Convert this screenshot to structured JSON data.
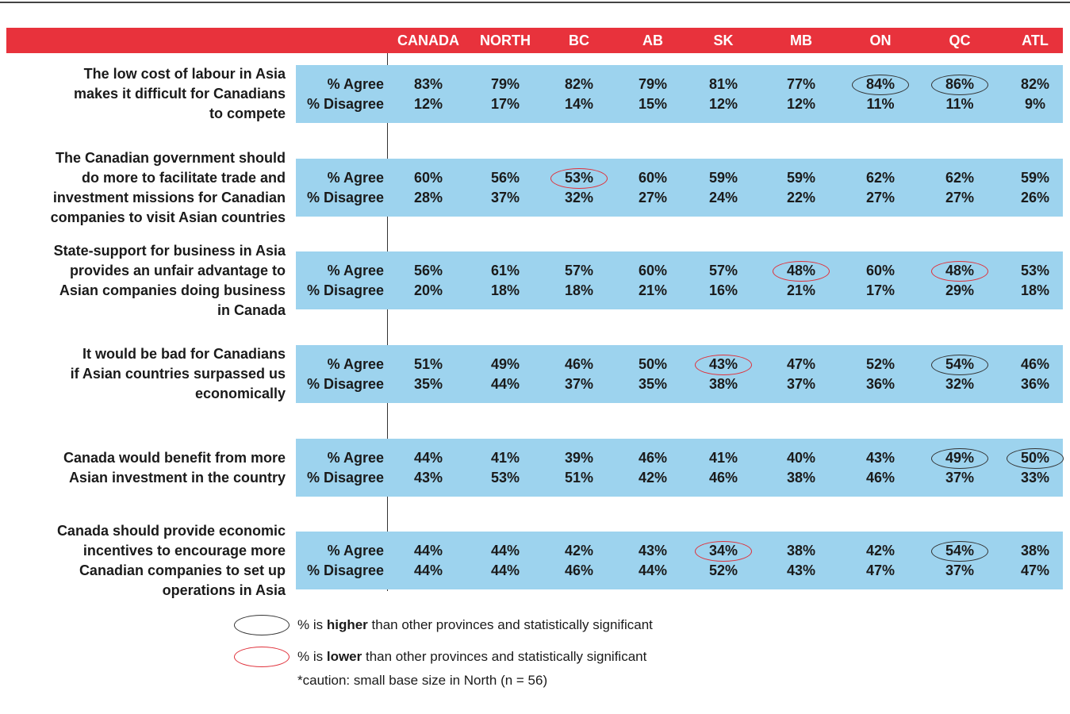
{
  "header": {
    "columns": [
      "CANADA",
      "NORTH",
      "BC",
      "AB",
      "SK",
      "MB",
      "ON",
      "QC",
      "ATL"
    ]
  },
  "table": {
    "row_labels": [
      "% Agree",
      "% Disagree"
    ],
    "rows": [
      {
        "statement": [
          "The low cost of labour in Asia",
          "makes it difficult for Canadians",
          "to compete"
        ],
        "agree": [
          "83%",
          "79%",
          "82%",
          "79%",
          "81%",
          "77%",
          {
            "text": "84%",
            "circle": "#333333"
          },
          {
            "text": "86%",
            "circle": "#333333"
          },
          "82%"
        ],
        "disagree": [
          "12%",
          "17%",
          "14%",
          "15%",
          "12%",
          "12%",
          "11%",
          "11%",
          "9%"
        ]
      },
      {
        "statement": [
          "The Canadian government should",
          "do more to facilitate trade and",
          "investment missions for Canadian",
          "companies to visit Asian countries"
        ],
        "agree": [
          "60%",
          "56%",
          {
            "text": "53%",
            "circle": "#e0303a"
          },
          "60%",
          "59%",
          "59%",
          "62%",
          "62%",
          "59%"
        ],
        "disagree": [
          "28%",
          "37%",
          "32%",
          "27%",
          "24%",
          "22%",
          "27%",
          "27%",
          "26%"
        ]
      },
      {
        "statement": [
          "State-support for business in Asia",
          "provides an unfair advantage to",
          "Asian companies doing business",
          "in Canada"
        ],
        "agree": [
          "56%",
          "61%",
          "57%",
          "60%",
          "57%",
          {
            "text": "48%",
            "circle": "#e0303a"
          },
          "60%",
          {
            "text": "48%",
            "circle": "#e0303a"
          },
          "53%"
        ],
        "disagree": [
          "20%",
          "18%",
          "18%",
          "21%",
          "16%",
          "21%",
          "17%",
          "29%",
          "18%"
        ]
      },
      {
        "statement": [
          "It would be bad for Canadians",
          "if Asian countries surpassed us",
          "economically"
        ],
        "agree": [
          "51%",
          "49%",
          "46%",
          "50%",
          {
            "text": "43%",
            "circle": "#e0303a"
          },
          "47%",
          "52%",
          {
            "text": "54%",
            "circle": "#333333"
          },
          "46%"
        ],
        "disagree": [
          "35%",
          "44%",
          "37%",
          "35%",
          "38%",
          "37%",
          "36%",
          "32%",
          "36%"
        ]
      },
      {
        "statement": [
          "Canada would benefit from more",
          "Asian investment in the country"
        ],
        "agree": [
          "44%",
          "41%",
          "39%",
          "46%",
          "41%",
          "40%",
          "43%",
          {
            "text": "49%",
            "circle": "#333333"
          },
          {
            "text": "50%",
            "circle": "#333333"
          }
        ],
        "disagree": [
          "43%",
          "53%",
          "51%",
          "42%",
          "46%",
          "38%",
          "46%",
          "37%",
          "33%"
        ]
      },
      {
        "statement": [
          "Canada should provide economic",
          "incentives to encourage more",
          "Canadian companies to set up",
          "operations in Asia"
        ],
        "agree": [
          "44%",
          "44%",
          "42%",
          "43%",
          {
            "text": "34%",
            "circle": "#e0303a"
          },
          "38%",
          "42%",
          {
            "text": "54%",
            "circle": "#333333"
          },
          "38%"
        ],
        "disagree": [
          "44%",
          "44%",
          "46%",
          "44%",
          "52%",
          "43%",
          "47%",
          "37%",
          "47%"
        ]
      }
    ]
  },
  "legend": [
    {
      "parts": [
        "% is ",
        "higher",
        " than other provinces and statistically significant"
      ],
      "circle": "#333333"
    },
    {
      "parts": [
        "% is ",
        "lower",
        " than other provinces and statistically significant"
      ],
      "circle": "#e0303a"
    }
  ],
  "note": "*caution: small base size in North (n = 56)"
}
